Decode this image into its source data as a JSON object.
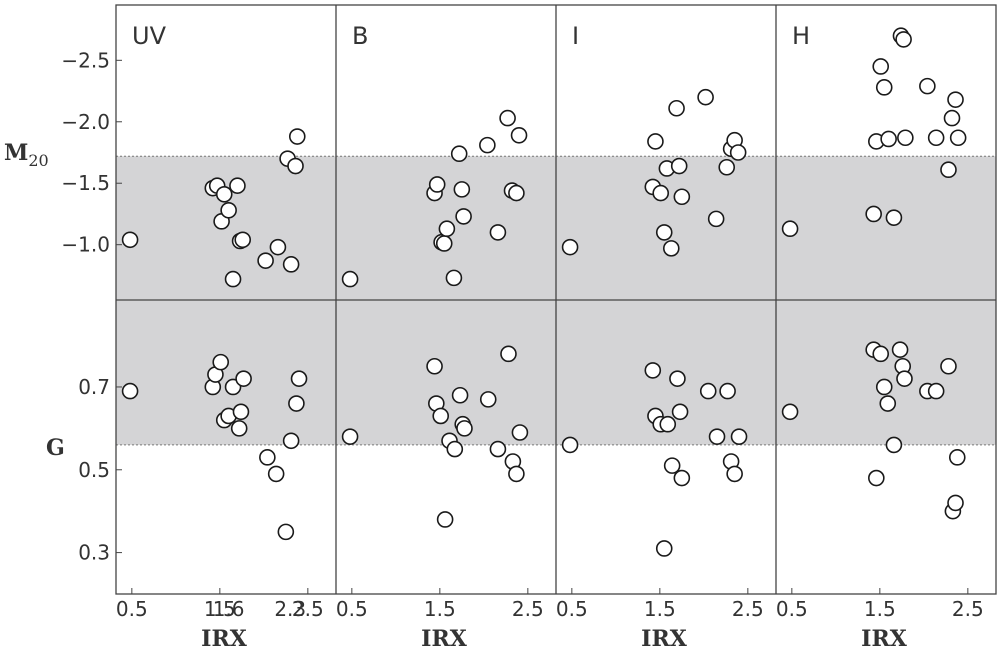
{
  "chart_data": {
    "type": "scatter",
    "xlabel": "IRX",
    "ylabel_top": {
      "main": "M",
      "sub": "20"
    },
    "ylabel_bottom": "G",
    "x_ticks": [
      0.5,
      1.5,
      2.5
    ],
    "x_minor_ticks": [
      1.6,
      2.3
    ],
    "x_tick_labels": [
      "0.5",
      "1.5",
      "2.5"
    ],
    "x_minor_tick_labels": [
      "1.6",
      "2.3"
    ],
    "xlim": [
      0.32,
      2.82
    ],
    "m20_ylim": [
      -0.55,
      -2.95
    ],
    "m20_inverted": true,
    "m20_ticks": [
      -1.0,
      -1.5,
      -2.0,
      -2.5
    ],
    "m20_tick_labels": [
      "−1.0",
      "−1.5",
      "−2.0",
      "−2.5"
    ],
    "m20_band": [
      -0.55,
      -1.72
    ],
    "g_ylim": [
      0.2,
      0.91
    ],
    "g_ticks": [
      0.3,
      0.5,
      0.7
    ],
    "g_tick_labels": [
      "0.3",
      "0.5",
      "0.7"
    ],
    "g_band": [
      0.56,
      0.91
    ],
    "panels": [
      {
        "name": "UV",
        "m20": [
          [
            0.48,
            -1.04
          ],
          [
            1.42,
            -1.46
          ],
          [
            1.47,
            -1.48
          ],
          [
            1.52,
            -1.19
          ],
          [
            1.55,
            -1.41
          ],
          [
            1.6,
            -1.28
          ],
          [
            1.65,
            -0.72
          ],
          [
            1.7,
            -1.48
          ],
          [
            1.73,
            -1.03
          ],
          [
            1.76,
            -1.04
          ],
          [
            2.02,
            -0.87
          ],
          [
            2.16,
            -0.98
          ],
          [
            2.27,
            -1.7
          ],
          [
            2.31,
            -0.84
          ],
          [
            2.36,
            -1.64
          ],
          [
            2.38,
            -1.88
          ]
        ],
        "g": [
          [
            0.48,
            0.69
          ],
          [
            1.42,
            0.7
          ],
          [
            1.45,
            0.73
          ],
          [
            1.51,
            0.76
          ],
          [
            1.55,
            0.62
          ],
          [
            1.6,
            0.63
          ],
          [
            1.65,
            0.7
          ],
          [
            1.72,
            0.6
          ],
          [
            1.74,
            0.64
          ],
          [
            1.77,
            0.72
          ],
          [
            2.04,
            0.53
          ],
          [
            2.14,
            0.49
          ],
          [
            2.25,
            0.35
          ],
          [
            2.31,
            0.57
          ],
          [
            2.37,
            0.66
          ],
          [
            2.4,
            0.72
          ]
        ]
      },
      {
        "name": "B",
        "m20": [
          [
            0.48,
            -0.72
          ],
          [
            1.44,
            -1.42
          ],
          [
            1.47,
            -1.49
          ],
          [
            1.52,
            -1.02
          ],
          [
            1.55,
            -1.01
          ],
          [
            1.58,
            -1.13
          ],
          [
            1.66,
            -0.73
          ],
          [
            1.72,
            -1.74
          ],
          [
            1.75,
            -1.45
          ],
          [
            1.77,
            -1.23
          ],
          [
            2.04,
            -1.81
          ],
          [
            2.16,
            -1.1
          ],
          [
            2.27,
            -2.03
          ],
          [
            2.32,
            -1.44
          ],
          [
            2.37,
            -1.42
          ],
          [
            2.4,
            -1.89
          ]
        ],
        "g": [
          [
            0.48,
            0.58
          ],
          [
            1.44,
            0.75
          ],
          [
            1.46,
            0.66
          ],
          [
            1.51,
            0.63
          ],
          [
            1.56,
            0.38
          ],
          [
            1.61,
            0.57
          ],
          [
            1.67,
            0.55
          ],
          [
            1.73,
            0.68
          ],
          [
            1.76,
            0.61
          ],
          [
            1.78,
            0.6
          ],
          [
            2.05,
            0.67
          ],
          [
            2.16,
            0.55
          ],
          [
            2.28,
            0.78
          ],
          [
            2.33,
            0.52
          ],
          [
            2.37,
            0.49
          ],
          [
            2.41,
            0.59
          ]
        ]
      },
      {
        "name": "I",
        "m20": [
          [
            0.48,
            -0.98
          ],
          [
            1.42,
            -1.47
          ],
          [
            1.45,
            -1.84
          ],
          [
            1.51,
            -1.42
          ],
          [
            1.55,
            -1.1
          ],
          [
            1.58,
            -1.62
          ],
          [
            1.63,
            -0.97
          ],
          [
            1.69,
            -2.11
          ],
          [
            1.72,
            -1.64
          ],
          [
            1.75,
            -1.39
          ],
          [
            2.02,
            -2.2
          ],
          [
            2.14,
            -1.21
          ],
          [
            2.26,
            -1.63
          ],
          [
            2.31,
            -1.78
          ],
          [
            2.35,
            -1.85
          ],
          [
            2.39,
            -1.75
          ]
        ],
        "g": [
          [
            0.48,
            0.56
          ],
          [
            1.42,
            0.74
          ],
          [
            1.45,
            0.63
          ],
          [
            1.51,
            0.61
          ],
          [
            1.55,
            0.31
          ],
          [
            1.59,
            0.61
          ],
          [
            1.64,
            0.51
          ],
          [
            1.7,
            0.72
          ],
          [
            1.73,
            0.64
          ],
          [
            1.75,
            0.48
          ],
          [
            2.05,
            0.69
          ],
          [
            2.15,
            0.58
          ],
          [
            2.27,
            0.69
          ],
          [
            2.31,
            0.52
          ],
          [
            2.35,
            0.49
          ],
          [
            2.4,
            0.58
          ]
        ]
      },
      {
        "name": "H",
        "m20": [
          [
            0.48,
            -1.13
          ],
          [
            1.43,
            -1.25
          ],
          [
            1.46,
            -1.84
          ],
          [
            1.51,
            -2.45
          ],
          [
            1.55,
            -2.28
          ],
          [
            1.6,
            -1.86
          ],
          [
            1.66,
            -1.22
          ],
          [
            1.74,
            -2.7
          ],
          [
            1.77,
            -2.67
          ],
          [
            1.79,
            -1.87
          ],
          [
            2.04,
            -2.29
          ],
          [
            2.14,
            -1.87
          ],
          [
            2.28,
            -1.61
          ],
          [
            2.32,
            -2.03
          ],
          [
            2.36,
            -2.18
          ],
          [
            2.39,
            -1.87
          ]
        ],
        "g": [
          [
            0.48,
            0.64
          ],
          [
            1.43,
            0.79
          ],
          [
            1.46,
            0.48
          ],
          [
            1.51,
            0.78
          ],
          [
            1.55,
            0.7
          ],
          [
            1.59,
            0.66
          ],
          [
            1.66,
            0.56
          ],
          [
            1.73,
            0.79
          ],
          [
            1.76,
            0.75
          ],
          [
            1.78,
            0.72
          ],
          [
            2.04,
            0.69
          ],
          [
            2.14,
            0.69
          ],
          [
            2.28,
            0.75
          ],
          [
            2.33,
            0.4
          ],
          [
            2.36,
            0.42
          ],
          [
            2.38,
            0.53
          ]
        ]
      }
    ]
  }
}
